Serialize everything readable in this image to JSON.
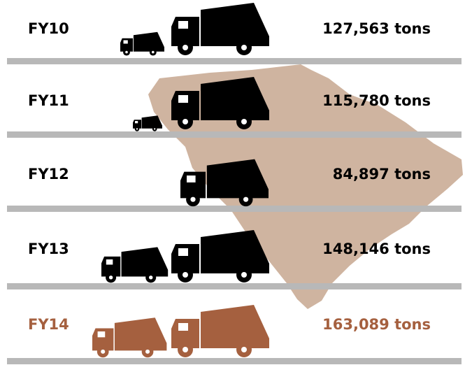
{
  "chart_data": {
    "type": "pictograph",
    "categories": [
      "FY10",
      "FY11",
      "FY12",
      "FY13",
      "FY14"
    ],
    "values": [
      127563,
      115780,
      84897,
      148146,
      163089
    ],
    "value_labels": [
      "127,563 tons",
      "115,780 tons",
      "84,897 tons",
      "148,146 tons",
      "163,089 tons"
    ],
    "colors": [
      "#000000",
      "#000000",
      "#000000",
      "#000000",
      "#a5603f"
    ]
  }
}
